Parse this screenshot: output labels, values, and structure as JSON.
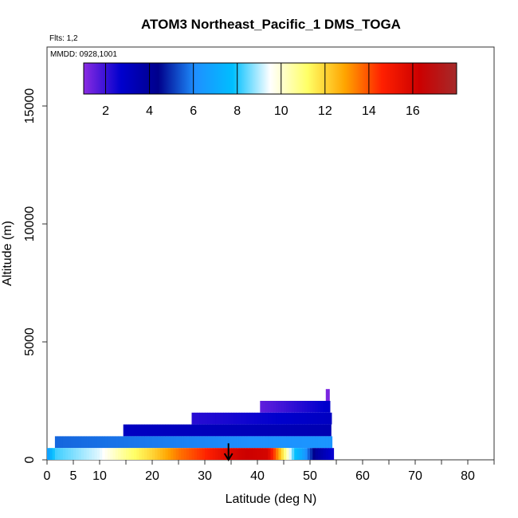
{
  "chart_data": {
    "type": "heatmap",
    "title": "ATOM3 Northeast_Pacific_1 DMS_TOGA",
    "notes": [
      "Flts: 1,2",
      "MMDD: 0928,1001"
    ],
    "xlabel": "Latitude (deg N)",
    "ylabel": "Altitude (m)",
    "xlim": [
      0,
      85
    ],
    "ylim": [
      0,
      17500
    ],
    "x_ticks": [
      0,
      5,
      10,
      20,
      30,
      40,
      50,
      60,
      70,
      80
    ],
    "x_minor_ticks": [
      15,
      25,
      35,
      45,
      55,
      65,
      75,
      85
    ],
    "y_ticks": [
      0,
      5000,
      10000,
      15000
    ],
    "colorbar": {
      "range": [
        1,
        18
      ],
      "ticks": [
        2,
        4,
        6,
        8,
        10,
        12,
        14,
        16
      ],
      "colors": [
        "#8a2be2",
        "#0000cd",
        "#00008b",
        "#1e90ff",
        "#00bfff",
        "#ffffff",
        "#ffff66",
        "#ffa500",
        "#ff2000",
        "#cc0000",
        "#a52a2a"
      ]
    },
    "marker": {
      "type": "arrow",
      "x": 34.5,
      "y_top": 700,
      "y_bottom": 0
    },
    "layers": [
      {
        "ymin": 2000,
        "ymax": 2500,
        "lat_start": 40.5,
        "lat_end": 53.8,
        "start_value": 1.5,
        "end_value": 2.8
      },
      {
        "ymin": 1500,
        "ymax": 2000,
        "lat_start": 27.5,
        "lat_end": 54.1,
        "start_value": 2.2,
        "end_value": 3.0
      },
      {
        "ymin": 1000,
        "ymax": 1500,
        "lat_start": 14.5,
        "lat_end": 54.0,
        "start_value": 3.0,
        "end_value": 3.4
      },
      {
        "ymin": 500,
        "ymax": 1000,
        "lat_start": 1.5,
        "lat_end": 54.2,
        "start_value": 5.6,
        "end_value": 6.3
      },
      {
        "ymin": 0,
        "ymax": 500,
        "lat_start": 0.0,
        "lat_end": 54.5,
        "profile": [
          [
            0.0,
            6.5
          ],
          [
            1.5,
            8.2
          ],
          [
            10.0,
            9.3
          ],
          [
            15.0,
            10.8
          ],
          [
            20.0,
            12.0
          ],
          [
            25.0,
            13.5
          ],
          [
            30.0,
            14.5
          ],
          [
            34.5,
            15.8
          ],
          [
            38.0,
            16.3
          ],
          [
            42.0,
            16.0
          ],
          [
            44.0,
            13.0
          ],
          [
            45.5,
            10.5
          ],
          [
            47.0,
            8.0
          ],
          [
            49.0,
            6.5
          ],
          [
            51.0,
            4.0
          ],
          [
            54.5,
            2.5
          ]
        ]
      },
      {
        "ymin": 2500,
        "ymax": 3000,
        "lat_start": 53.0,
        "lat_end": 53.7,
        "start_value": 1.2,
        "end_value": 1.2
      }
    ]
  }
}
